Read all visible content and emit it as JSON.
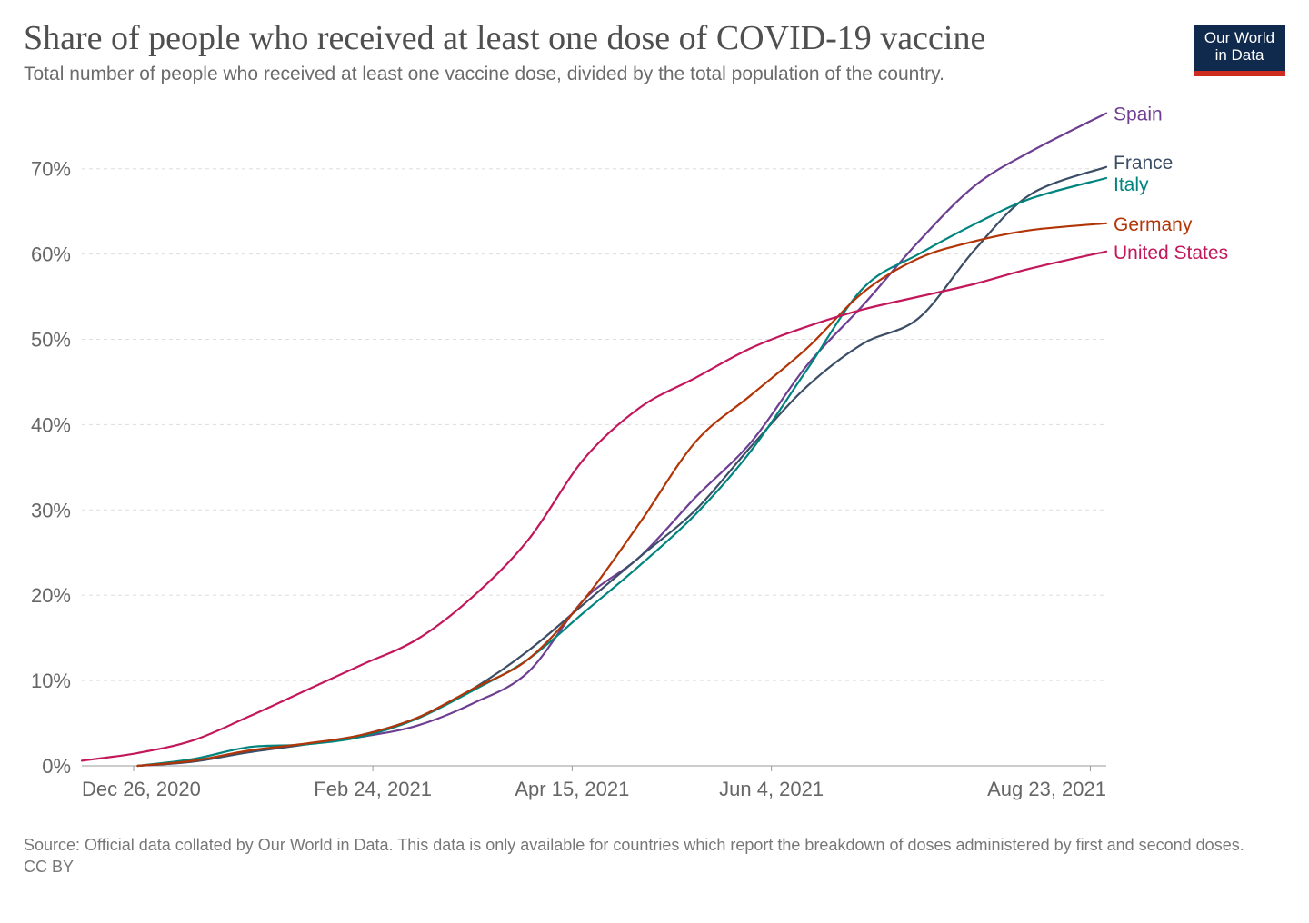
{
  "header": {
    "title": "Share of people who received at least one dose of COVID-19 vaccine",
    "subtitle": "Total number of people who received at least one vaccine dose, divided by the total population of the country."
  },
  "logo": {
    "line1": "Our World",
    "line2": "in Data"
  },
  "footer": {
    "source": "Source: Official data collated by Our World in Data. This data is only available for countries which report the breakdown of doses administered by first and second doses.",
    "license": "CC BY"
  },
  "chart_data": {
    "type": "line",
    "x_type": "date",
    "xlim": [
      "2020-12-13",
      "2021-08-27"
    ],
    "ylim": [
      0,
      75
    ],
    "y_ticks": [
      0,
      10,
      20,
      30,
      40,
      50,
      60,
      70
    ],
    "y_tick_labels": [
      "0%",
      "10%",
      "20%",
      "30%",
      "40%",
      "50%",
      "60%",
      "70%"
    ],
    "x_ticks": [
      "2020-12-26",
      "2021-02-24",
      "2021-04-15",
      "2021-06-04",
      "2021-08-23"
    ],
    "x_tick_labels": [
      "Dec 26, 2020",
      "Feb 24, 2021",
      "Apr 15, 2021",
      "Jun 4, 2021",
      "Aug 23, 2021"
    ],
    "grid": "horizontal dashed",
    "legend": "inline labels at line ends (right)",
    "series": [
      {
        "name": "Spain",
        "color": "#6d3e91",
        "points": [
          [
            "2020-12-27",
            0
          ],
          [
            "2021-01-10",
            0.5
          ],
          [
            "2021-01-24",
            1.7
          ],
          [
            "2021-02-07",
            2.5
          ],
          [
            "2021-02-21",
            3.4
          ],
          [
            "2021-03-07",
            4.7
          ],
          [
            "2021-03-21",
            7.3
          ],
          [
            "2021-04-04",
            11.0
          ],
          [
            "2021-04-18",
            19.5
          ],
          [
            "2021-05-02",
            24.5
          ],
          [
            "2021-05-16",
            31.5
          ],
          [
            "2021-05-30",
            38.0
          ],
          [
            "2021-06-13",
            47.0
          ],
          [
            "2021-06-27",
            54.0
          ],
          [
            "2021-07-11",
            61.5
          ],
          [
            "2021-07-25",
            68.0
          ],
          [
            "2021-08-08",
            72.0
          ],
          [
            "2021-08-27",
            76.5
          ]
        ]
      },
      {
        "name": "France",
        "color": "#3c4e66",
        "points": [
          [
            "2020-12-27",
            0
          ],
          [
            "2021-01-10",
            0.5
          ],
          [
            "2021-01-24",
            1.6
          ],
          [
            "2021-02-07",
            2.5
          ],
          [
            "2021-02-21",
            3.6
          ],
          [
            "2021-03-07",
            5.6
          ],
          [
            "2021-03-21",
            9.0
          ],
          [
            "2021-04-04",
            13.5
          ],
          [
            "2021-04-18",
            19.0
          ],
          [
            "2021-05-02",
            24.5
          ],
          [
            "2021-05-16",
            30.0
          ],
          [
            "2021-05-30",
            37.5
          ],
          [
            "2021-06-13",
            44.5
          ],
          [
            "2021-06-27",
            49.5
          ],
          [
            "2021-07-11",
            52.5
          ],
          [
            "2021-07-25",
            60.5
          ],
          [
            "2021-08-08",
            67.0
          ],
          [
            "2021-08-27",
            70.2
          ]
        ]
      },
      {
        "name": "Italy",
        "color": "#00847e",
        "points": [
          [
            "2020-12-27",
            0
          ],
          [
            "2021-01-10",
            0.8
          ],
          [
            "2021-01-24",
            2.2
          ],
          [
            "2021-02-07",
            2.5
          ],
          [
            "2021-02-21",
            3.4
          ],
          [
            "2021-03-07",
            5.5
          ],
          [
            "2021-03-21",
            8.8
          ],
          [
            "2021-04-04",
            12.5
          ],
          [
            "2021-04-18",
            18.0
          ],
          [
            "2021-05-02",
            23.5
          ],
          [
            "2021-05-16",
            29.5
          ],
          [
            "2021-05-30",
            37.0
          ],
          [
            "2021-06-13",
            46.5
          ],
          [
            "2021-06-27",
            56.0
          ],
          [
            "2021-07-11",
            60.0
          ],
          [
            "2021-07-25",
            63.5
          ],
          [
            "2021-08-08",
            66.5
          ],
          [
            "2021-08-27",
            68.9
          ]
        ]
      },
      {
        "name": "Germany",
        "color": "#b13507",
        "points": [
          [
            "2020-12-27",
            0
          ],
          [
            "2021-01-10",
            0.6
          ],
          [
            "2021-01-24",
            1.8
          ],
          [
            "2021-02-07",
            2.6
          ],
          [
            "2021-02-21",
            3.6
          ],
          [
            "2021-03-07",
            5.6
          ],
          [
            "2021-03-21",
            9.0
          ],
          [
            "2021-04-04",
            12.5
          ],
          [
            "2021-04-18",
            19.5
          ],
          [
            "2021-05-02",
            28.5
          ],
          [
            "2021-05-16",
            38.0
          ],
          [
            "2021-05-30",
            43.5
          ],
          [
            "2021-06-13",
            49.0
          ],
          [
            "2021-06-27",
            55.5
          ],
          [
            "2021-07-11",
            59.5
          ],
          [
            "2021-07-25",
            61.5
          ],
          [
            "2021-08-08",
            62.8
          ],
          [
            "2021-08-27",
            63.6
          ]
        ]
      },
      {
        "name": "United States",
        "color": "#c2185b",
        "points": [
          [
            "2020-12-13",
            0.6
          ],
          [
            "2020-12-27",
            1.5
          ],
          [
            "2021-01-10",
            3.0
          ],
          [
            "2021-01-24",
            5.8
          ],
          [
            "2021-02-07",
            8.8
          ],
          [
            "2021-02-21",
            11.8
          ],
          [
            "2021-03-07",
            14.8
          ],
          [
            "2021-03-21",
            19.8
          ],
          [
            "2021-04-04",
            26.5
          ],
          [
            "2021-04-18",
            36.0
          ],
          [
            "2021-05-02",
            42.0
          ],
          [
            "2021-05-16",
            45.5
          ],
          [
            "2021-05-30",
            49.0
          ],
          [
            "2021-06-13",
            51.5
          ],
          [
            "2021-06-27",
            53.5
          ],
          [
            "2021-07-11",
            55.0
          ],
          [
            "2021-07-25",
            56.5
          ],
          [
            "2021-08-08",
            58.3
          ],
          [
            "2021-08-27",
            60.3
          ]
        ]
      }
    ]
  }
}
